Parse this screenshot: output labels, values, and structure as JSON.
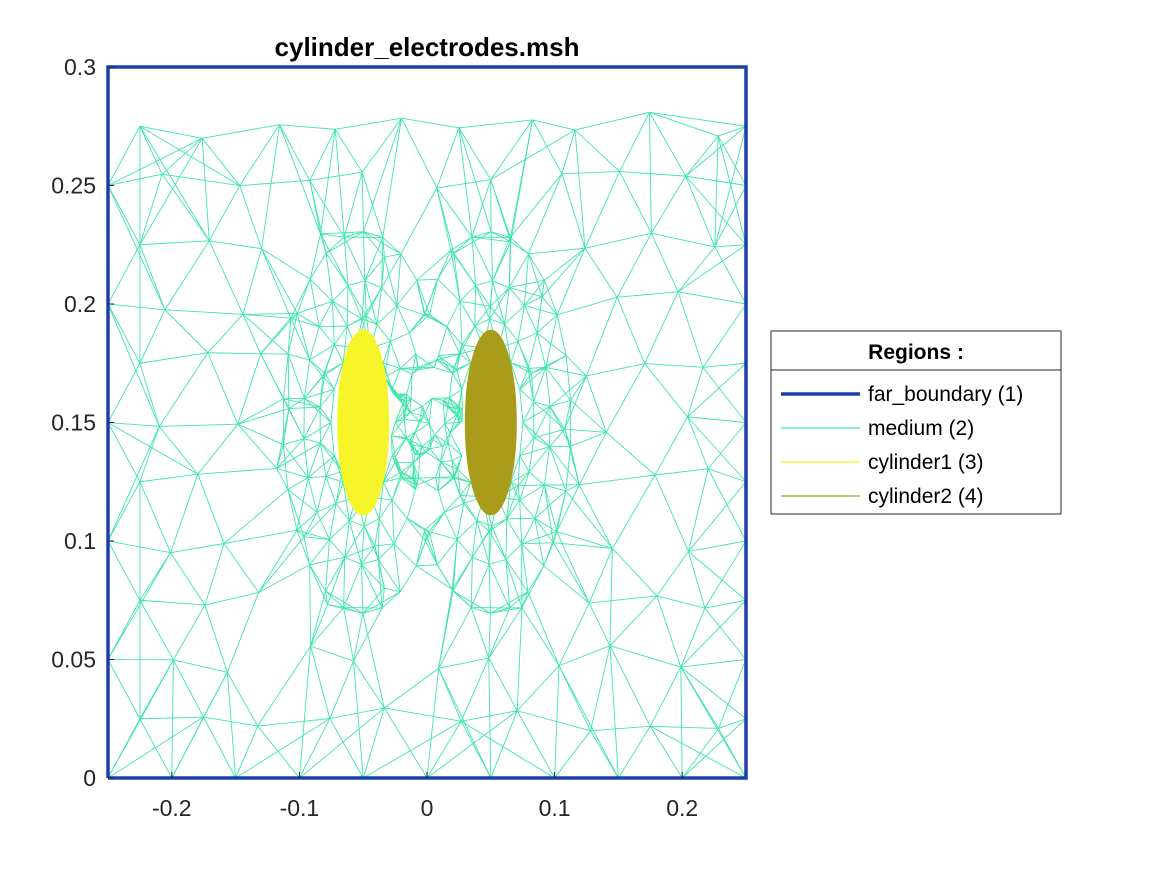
{
  "chart_data": {
    "type": "mesh",
    "title": "cylinder_electrodes.msh",
    "xlim": [
      -0.25,
      0.25
    ],
    "ylim": [
      0,
      0.3
    ],
    "x_ticks": [
      {
        "value": -0.2,
        "label": "-0.2"
      },
      {
        "value": -0.1,
        "label": "-0.1"
      },
      {
        "value": 0,
        "label": "0"
      },
      {
        "value": 0.1,
        "label": "0.1"
      },
      {
        "value": 0.2,
        "label": "0.2"
      }
    ],
    "y_ticks": [
      {
        "value": 0,
        "label": "0"
      },
      {
        "value": 0.05,
        "label": "0.05"
      },
      {
        "value": 0.1,
        "label": "0.1"
      },
      {
        "value": 0.15,
        "label": "0.15"
      },
      {
        "value": 0.2,
        "label": "0.2"
      },
      {
        "value": 0.25,
        "label": "0.25"
      },
      {
        "value": 0.3,
        "label": "0.3"
      }
    ],
    "legend": {
      "title": "Regions :",
      "placement": "outside-right",
      "entries": [
        {
          "label": "far_boundary (1)",
          "color": "#1f3fa8",
          "style": "thick-line"
        },
        {
          "label": "medium (2)",
          "color": "#3fe6a8",
          "style": "thin-line"
        },
        {
          "label": "cylinder1 (3)",
          "color": "#f5f52a",
          "style": "thin-line"
        },
        {
          "label": "cylinder2 (4)",
          "color": "#a89c1a",
          "style": "thin-line"
        }
      ]
    },
    "regions": [
      {
        "id": 1,
        "name": "far_boundary",
        "kind": "boundary",
        "polyline": [
          [
            -0.25,
            0
          ],
          [
            0.25,
            0
          ],
          [
            0.25,
            0.3
          ],
          [
            -0.25,
            0.3
          ],
          [
            -0.25,
            0
          ]
        ],
        "color": "#1f3fa8"
      },
      {
        "id": 2,
        "name": "medium",
        "kind": "triangle-mesh",
        "color": "#3fe6a8",
        "domain": {
          "xmin": -0.25,
          "xmax": 0.25,
          "ymin": 0,
          "ymax": 0.3
        }
      },
      {
        "id": 3,
        "name": "cylinder1",
        "kind": "ellipse",
        "center": [
          -0.05,
          0.15
        ],
        "radii": [
          0.02,
          0.02
        ],
        "color": "#f5f52a"
      },
      {
        "id": 4,
        "name": "cylinder2",
        "kind": "ellipse",
        "center": [
          0.05,
          0.15
        ],
        "radii": [
          0.02,
          0.02
        ],
        "color": "#a89c1a"
      }
    ]
  }
}
